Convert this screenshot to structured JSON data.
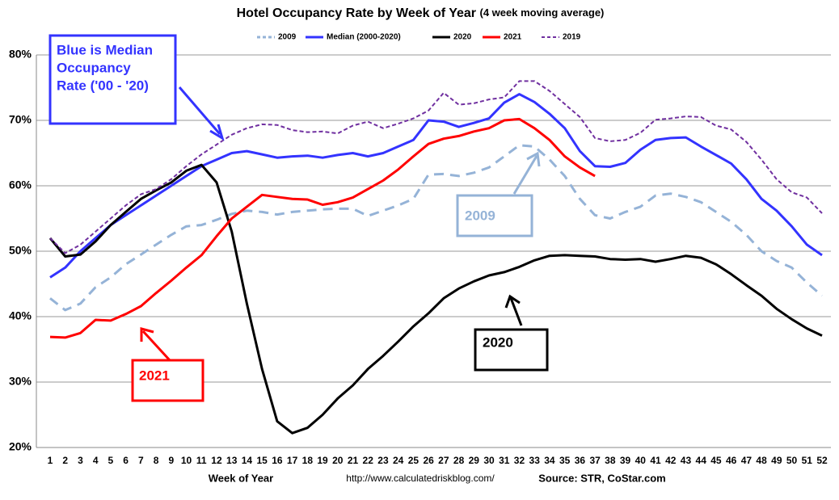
{
  "chart_data": {
    "type": "line",
    "title": "Hotel Occupancy Rate by  Week of Year",
    "subtitle": "(4 week moving average)",
    "x_label": "Week of Year",
    "url": "http://www.calculatedriskblog.com/",
    "source": "Source: STR, CoStar.com",
    "categories": [
      1,
      2,
      3,
      4,
      5,
      6,
      7,
      8,
      9,
      10,
      11,
      12,
      13,
      14,
      15,
      16,
      17,
      18,
      19,
      20,
      21,
      22,
      23,
      24,
      25,
      26,
      27,
      28,
      29,
      30,
      31,
      32,
      33,
      34,
      35,
      36,
      37,
      38,
      39,
      40,
      41,
      42,
      43,
      44,
      45,
      46,
      47,
      48,
      49,
      50,
      51,
      52
    ],
    "ylim": [
      20,
      80
    ],
    "yticks": [
      {
        "value": 20,
        "label": "20%"
      },
      {
        "value": 30,
        "label": "30%"
      },
      {
        "value": 40,
        "label": "40%"
      },
      {
        "value": 50,
        "label": "50%"
      },
      {
        "value": 60,
        "label": "60%"
      },
      {
        "value": 70,
        "label": "70%"
      },
      {
        "value": 80,
        "label": "80%"
      }
    ],
    "grid": true,
    "legend": "top",
    "series": [
      {
        "name": "2009",
        "color": "#95b3d7",
        "dash": "12,8",
        "values": [
          42.8,
          41,
          42,
          44.5,
          46,
          48,
          49.5,
          51,
          52.5,
          53.8,
          54,
          54.8,
          55.7,
          56.2,
          56,
          55.6,
          56,
          56.2,
          56.4,
          56.5,
          56.5,
          55.4,
          56.2,
          57,
          58,
          61.7,
          61.8,
          61.5,
          62,
          62.8,
          64.5,
          66.2,
          66,
          64,
          61.5,
          58,
          55.5,
          55,
          56,
          56.8,
          58.5,
          58.8,
          58.3,
          57.5,
          56,
          54.5,
          52.5,
          50,
          48.5,
          47.5,
          45.2,
          43.2
        ]
      },
      {
        "name": "Median (2000-2020)",
        "color": "#3333ff",
        "dash": "none",
        "values": [
          46,
          47.5,
          50,
          52,
          54,
          55.5,
          57,
          58.5,
          60,
          61.5,
          63,
          64,
          65,
          65.3,
          64.8,
          64.3,
          64.5,
          64.6,
          64.3,
          64.7,
          65,
          64.5,
          65,
          66,
          67,
          70,
          69.8,
          69,
          69.6,
          70.3,
          72.7,
          74,
          72.8,
          71,
          68.8,
          65.3,
          63,
          62.9,
          63.5,
          65.5,
          67,
          67.3,
          67.4,
          66,
          64.7,
          63.4,
          61,
          58,
          56.2,
          53.8,
          51,
          49.4
        ]
      },
      {
        "name": "2020",
        "color": "#000000",
        "dash": "none",
        "values": [
          52,
          49.2,
          49.5,
          51.5,
          54,
          56,
          58,
          59.3,
          60.5,
          62.3,
          63.2,
          60.5,
          53,
          42,
          32,
          24,
          22.2,
          23,
          25,
          27.5,
          29.5,
          32,
          34,
          36.2,
          38.5,
          40.5,
          42.8,
          44.3,
          45.4,
          46.3,
          46.8,
          47.6,
          48.6,
          49.3,
          49.4,
          49.3,
          49.2,
          48.8,
          48.7,
          48.8,
          48.4,
          48.8,
          49.3,
          49,
          48,
          46.5,
          44.8,
          43.2,
          41.2,
          39.6,
          38.2,
          37.1
        ]
      },
      {
        "name": "2021",
        "color": "#ff0000",
        "dash": "none",
        "values": [
          36.9,
          36.8,
          37.5,
          39.5,
          39.4,
          40.4,
          41.6,
          43.6,
          45.5,
          47.5,
          49.4,
          52.3,
          55,
          56.8,
          58.6,
          58.3,
          58,
          57.9,
          57.1,
          57.5,
          58.2,
          59.5,
          60.8,
          62.5,
          64.5,
          66.4,
          67.2,
          67.6,
          68.3,
          68.8,
          70,
          70.2,
          68.8,
          67,
          64.5,
          62.8,
          61.5,
          null,
          null,
          null,
          null,
          null,
          null,
          null,
          null,
          null,
          null,
          null,
          null,
          null,
          null,
          null
        ]
      },
      {
        "name": "2019",
        "color": "#7030a0",
        "dash": "5,3",
        "values": [
          52,
          49.7,
          51,
          53,
          55,
          57,
          58.7,
          59.5,
          61,
          63,
          64.8,
          66.3,
          67.8,
          68.8,
          69.4,
          69.3,
          68.5,
          68.2,
          68.3,
          68,
          69.2,
          69.8,
          68.8,
          69.5,
          70.3,
          71.5,
          74.2,
          72.4,
          72.6,
          73.2,
          73.5,
          76,
          76,
          74.5,
          72.5,
          70.5,
          67.3,
          66.8,
          67,
          68.1,
          70.1,
          70.3,
          70.6,
          70.5,
          69.2,
          68.6,
          66.7,
          64,
          61,
          59,
          58.2,
          55.8
        ]
      }
    ],
    "annotations": [
      {
        "lines": [
          "Blue is Median",
          "Occupancy",
          "Rate ('00 - '20)"
        ]
      },
      {
        "text": "2009"
      },
      {
        "text": "2020"
      },
      {
        "text": "2021"
      }
    ]
  }
}
